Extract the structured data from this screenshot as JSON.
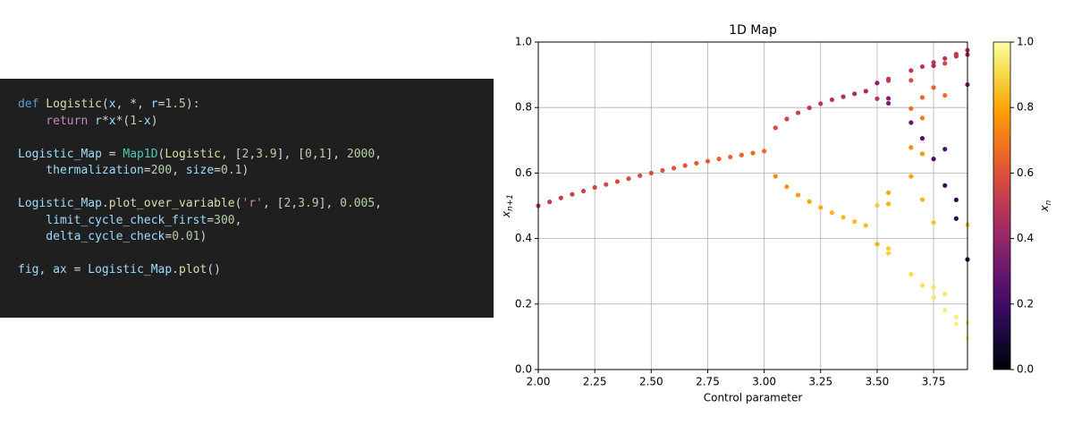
{
  "code": [
    [
      [
        {
          "text": "def",
          "color": "#569cd6"
        },
        {
          "text": " Logistic",
          "color": "#dcdcaa"
        },
        {
          "text": "(",
          "color": "#d4d4d4"
        },
        {
          "text": "x",
          "color": "#9cdcfe"
        },
        {
          "text": ", *, ",
          "color": "#d4d4d4"
        },
        {
          "text": "r",
          "color": "#9cdcfe"
        },
        {
          "text": "=",
          "color": "#d4d4d4"
        },
        {
          "text": "1.5",
          "color": "#b5cea8"
        },
        {
          "text": "):",
          "color": "#d4d4d4"
        }
      ],
      [
        {
          "text": "    return",
          "color": "#c586c0"
        },
        {
          "text": " r",
          "color": "#9cdcfe"
        },
        {
          "text": "*",
          "color": "#d4d4d4"
        },
        {
          "text": "x",
          "color": "#9cdcfe"
        },
        {
          "text": "*(",
          "color": "#d4d4d4"
        },
        {
          "text": "1",
          "color": "#b5cea8"
        },
        {
          "text": "-",
          "color": "#d4d4d4"
        },
        {
          "text": "x",
          "color": "#9cdcfe"
        },
        {
          "text": ")",
          "color": "#d4d4d4"
        }
      ]
    ],
    [
      [
        {
          "text": "Logistic_Map",
          "color": "#9cdcfe"
        },
        {
          "text": " = ",
          "color": "#d4d4d4"
        },
        {
          "text": "Map1D",
          "color": "#4ec9b0"
        },
        {
          "text": "(",
          "color": "#d4d4d4"
        },
        {
          "text": "Logistic",
          "color": "#dcdcaa"
        },
        {
          "text": ", [",
          "color": "#d4d4d4"
        },
        {
          "text": "2",
          "color": "#b5cea8"
        },
        {
          "text": ",",
          "color": "#d4d4d4"
        },
        {
          "text": "3.9",
          "color": "#b5cea8"
        },
        {
          "text": "], [",
          "color": "#d4d4d4"
        },
        {
          "text": "0",
          "color": "#b5cea8"
        },
        {
          "text": ",",
          "color": "#d4d4d4"
        },
        {
          "text": "1",
          "color": "#b5cea8"
        },
        {
          "text": "], ",
          "color": "#d4d4d4"
        },
        {
          "text": "2000",
          "color": "#b5cea8"
        },
        {
          "text": ",",
          "color": "#d4d4d4"
        }
      ],
      [
        {
          "text": "    thermalization",
          "color": "#9cdcfe"
        },
        {
          "text": "=",
          "color": "#d4d4d4"
        },
        {
          "text": "200",
          "color": "#b5cea8"
        },
        {
          "text": ", ",
          "color": "#d4d4d4"
        },
        {
          "text": "size",
          "color": "#9cdcfe"
        },
        {
          "text": "=",
          "color": "#d4d4d4"
        },
        {
          "text": "0.1",
          "color": "#b5cea8"
        },
        {
          "text": ")",
          "color": "#d4d4d4"
        }
      ]
    ],
    [
      [
        {
          "text": "Logistic_Map",
          "color": "#9cdcfe"
        },
        {
          "text": ".",
          "color": "#d4d4d4"
        },
        {
          "text": "plot_over_variable",
          "color": "#dcdcaa"
        },
        {
          "text": "(",
          "color": "#d4d4d4"
        },
        {
          "text": "'r'",
          "color": "#ce9178"
        },
        {
          "text": ", [",
          "color": "#d4d4d4"
        },
        {
          "text": "2",
          "color": "#b5cea8"
        },
        {
          "text": ",",
          "color": "#d4d4d4"
        },
        {
          "text": "3.9",
          "color": "#b5cea8"
        },
        {
          "text": "], ",
          "color": "#d4d4d4"
        },
        {
          "text": "0.005",
          "color": "#b5cea8"
        },
        {
          "text": ",",
          "color": "#d4d4d4"
        }
      ],
      [
        {
          "text": "    limit_cycle_check_first",
          "color": "#9cdcfe"
        },
        {
          "text": "=",
          "color": "#d4d4d4"
        },
        {
          "text": "300",
          "color": "#b5cea8"
        },
        {
          "text": ",",
          "color": "#d4d4d4"
        }
      ],
      [
        {
          "text": "    delta_cycle_check",
          "color": "#9cdcfe"
        },
        {
          "text": "=",
          "color": "#d4d4d4"
        },
        {
          "text": "0.01",
          "color": "#b5cea8"
        },
        {
          "text": ")",
          "color": "#d4d4d4"
        }
      ]
    ],
    [
      [
        {
          "text": "fig",
          "color": "#9cdcfe"
        },
        {
          "text": ", ",
          "color": "#d4d4d4"
        },
        {
          "text": "ax",
          "color": "#9cdcfe"
        },
        {
          "text": " = ",
          "color": "#d4d4d4"
        },
        {
          "text": "Logistic_Map",
          "color": "#9cdcfe"
        },
        {
          "text": ".",
          "color": "#d4d4d4"
        },
        {
          "text": "plot",
          "color": "#dcdcaa"
        },
        {
          "text": "()",
          "color": "#d4d4d4"
        }
      ]
    ]
  ],
  "chart_data": {
    "type": "scatter",
    "title": "1D Map",
    "xlabel": "Control parameter",
    "ylabel": "x",
    "ylabel_sub": "n+1",
    "colorbar_label": "x",
    "colorbar_label_sub": "n",
    "colormap": "inferno",
    "grid": true,
    "x": [
      2.0,
      2.05,
      2.1,
      2.15,
      2.2,
      2.25,
      2.3,
      2.35,
      2.4,
      2.45,
      2.5,
      2.55,
      2.6,
      2.65,
      2.7,
      2.75,
      2.8,
      2.85,
      2.9,
      2.95,
      3.0,
      3.05,
      3.05,
      3.1,
      3.1,
      3.15,
      3.15,
      3.2,
      3.2,
      3.25,
      3.25,
      3.3,
      3.3,
      3.35,
      3.35,
      3.4,
      3.4,
      3.45,
      3.45,
      3.5,
      3.5,
      3.5,
      3.5,
      3.55,
      3.55,
      3.55,
      3.55,
      3.55,
      3.55,
      3.55,
      3.55,
      3.65,
      3.65,
      3.65,
      3.65,
      3.65,
      3.65,
      3.65,
      3.7,
      3.7,
      3.7,
      3.7,
      3.7,
      3.7,
      3.7,
      3.75,
      3.75,
      3.75,
      3.75,
      3.75,
      3.75,
      3.75,
      3.8,
      3.8,
      3.8,
      3.8,
      3.8,
      3.8,
      3.8,
      3.85,
      3.85,
      3.85,
      3.85,
      3.85,
      3.85,
      3.85,
      3.9,
      3.9,
      3.9,
      3.9,
      3.9,
      3.9,
      3.9
    ],
    "y": [
      0.5,
      0.512,
      0.524,
      0.535,
      0.545,
      0.556,
      0.565,
      0.574,
      0.583,
      0.592,
      0.6,
      0.608,
      0.615,
      0.623,
      0.63,
      0.636,
      0.643,
      0.649,
      0.655,
      0.661,
      0.667,
      0.738,
      0.59,
      0.765,
      0.558,
      0.784,
      0.533,
      0.799,
      0.513,
      0.812,
      0.495,
      0.824,
      0.479,
      0.833,
      0.465,
      0.842,
      0.452,
      0.85,
      0.44,
      0.383,
      0.827,
      0.501,
      0.875,
      0.882,
      0.37,
      0.828,
      0.506,
      0.887,
      0.355,
      0.813,
      0.54,
      0.913,
      0.291,
      0.754,
      0.678,
      0.797,
      0.59,
      0.883,
      0.925,
      0.257,
      0.706,
      0.768,
      0.659,
      0.831,
      0.519,
      0.938,
      0.22,
      0.643,
      0.861,
      0.449,
      0.928,
      0.251,
      0.95,
      0.181,
      0.562,
      0.935,
      0.23,
      0.673,
      0.837,
      0.963,
      0.139,
      0.461,
      0.957,
      0.16,
      0.518,
      0.961,
      0.975,
      0.095,
      0.336,
      0.87,
      0.442,
      0.962,
      0.143
    ],
    "c": [
      0.5,
      0.512,
      0.524,
      0.535,
      0.545,
      0.556,
      0.565,
      0.574,
      0.583,
      0.592,
      0.6,
      0.608,
      0.615,
      0.623,
      0.63,
      0.636,
      0.643,
      0.649,
      0.655,
      0.661,
      0.667,
      0.59,
      0.738,
      0.558,
      0.765,
      0.533,
      0.784,
      0.513,
      0.799,
      0.495,
      0.812,
      0.479,
      0.824,
      0.465,
      0.833,
      0.452,
      0.842,
      0.44,
      0.85,
      0.827,
      0.501,
      0.875,
      0.383,
      0.54,
      0.882,
      0.37,
      0.828,
      0.506,
      0.887,
      0.355,
      0.813,
      0.5,
      0.913,
      0.291,
      0.754,
      0.678,
      0.797,
      0.59,
      0.5,
      0.925,
      0.257,
      0.706,
      0.768,
      0.659,
      0.831,
      0.5,
      0.938,
      0.22,
      0.643,
      0.861,
      0.449,
      0.928,
      0.5,
      0.95,
      0.181,
      0.562,
      0.935,
      0.23,
      0.673,
      0.5,
      0.963,
      0.139,
      0.461,
      0.957,
      0.16,
      0.518,
      0.5,
      0.975,
      0.095,
      0.336,
      0.87,
      0.442,
      0.962
    ],
    "xlim": [
      2.0,
      3.9
    ],
    "xticks": [
      {
        "value": 2.0,
        "label": "2.00"
      },
      {
        "value": 2.25,
        "label": "2.25"
      },
      {
        "value": 2.5,
        "label": "2.50"
      },
      {
        "value": 2.75,
        "label": "2.75"
      },
      {
        "value": 3.0,
        "label": "3.00"
      },
      {
        "value": 3.25,
        "label": "3.25"
      },
      {
        "value": 3.5,
        "label": "3.50"
      },
      {
        "value": 3.75,
        "label": "3.75"
      }
    ],
    "ylim": [
      0.0,
      1.0
    ],
    "yticks": [
      {
        "value": 0,
        "label": "0.0"
      },
      {
        "value": 0.2,
        "label": "0.2"
      },
      {
        "value": 0.4,
        "label": "0.4"
      },
      {
        "value": 0.6,
        "label": "0.6"
      },
      {
        "value": 0.8,
        "label": "0.8"
      },
      {
        "value": 1,
        "label": "1.0"
      }
    ],
    "clim": [
      0.0,
      1.0
    ],
    "cticks": [
      {
        "value": 0,
        "label": "0.0"
      },
      {
        "value": 0.2,
        "label": "0.2"
      },
      {
        "value": 0.4,
        "label": "0.4"
      },
      {
        "value": 0.6,
        "label": "0.6"
      },
      {
        "value": 0.8,
        "label": "0.8"
      },
      {
        "value": 1,
        "label": "1.0"
      }
    ]
  }
}
